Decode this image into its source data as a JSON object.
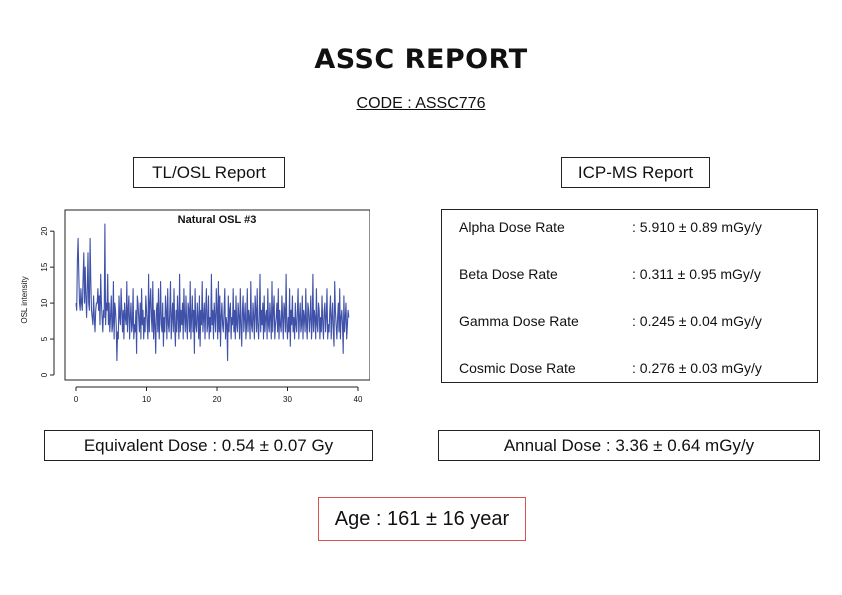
{
  "title": "ASSC REPORT",
  "code": "CODE : ASSC776",
  "tlosl": {
    "header": "TL/OSL Report",
    "equivalent_dose": "Equivalent Dose : 0.54 ± 0.07 Gy"
  },
  "icpms": {
    "header": "ICP-MS Report",
    "rates": [
      {
        "name": "Alpha Dose Rate",
        "value": ": 5.910 ± 0.89 mGy/y"
      },
      {
        "name": "Beta Dose Rate",
        "value": ": 0.311 ± 0.95 mGy/y"
      },
      {
        "name": "Gamma Dose Rate",
        "value": ": 0.245 ± 0.04 mGy/y"
      },
      {
        "name": "Cosmic Dose Rate",
        "value": ": 0.276 ± 0.03 mGy/y"
      }
    ],
    "annual_dose": "Annual Dose : 3.36 ± 0.64 mGy/y"
  },
  "age": "Age : 161 ± 16 year",
  "chart_data": {
    "type": "line",
    "title": "Natural OSL #3",
    "xlabel": "",
    "ylabel": "OSL intensity",
    "xlim": [
      0,
      40
    ],
    "ylim": [
      0,
      21
    ],
    "xticks": [
      "0",
      "10",
      "20",
      "30",
      "40"
    ],
    "yticks": [
      "0",
      "5",
      "10",
      "15",
      "20"
    ],
    "line_color": "#3f51a8",
    "x_start": 0,
    "x_step": 0.1,
    "values": [
      10,
      9,
      16,
      19,
      14,
      10,
      9,
      12,
      10,
      9,
      13,
      17,
      10,
      15,
      11,
      8,
      12,
      17,
      10,
      9,
      19,
      13,
      9,
      8,
      7,
      11,
      8,
      6,
      9,
      10,
      10,
      12,
      9,
      11,
      7,
      14,
      10,
      8,
      6,
      9,
      8,
      21,
      7,
      10,
      9,
      14,
      7,
      10,
      6,
      8,
      11,
      6,
      7,
      13,
      5,
      10,
      9,
      7,
      2,
      6,
      5,
      11,
      8,
      7,
      12,
      9,
      6,
      9,
      5,
      10,
      8,
      7,
      13,
      6,
      9,
      11,
      5,
      8,
      10,
      6,
      7,
      12,
      5,
      7,
      6,
      9,
      3,
      11,
      10,
      8,
      6,
      10,
      5,
      12,
      7,
      9,
      5,
      8,
      6,
      11,
      9,
      7,
      5,
      14,
      6,
      10,
      12,
      8,
      6,
      13,
      5,
      9,
      7,
      3,
      9,
      10,
      6,
      12,
      5,
      8,
      13,
      7,
      6,
      10,
      4,
      8,
      6,
      11,
      9,
      5,
      12,
      7,
      6,
      9,
      13,
      5,
      8,
      10,
      6,
      12,
      7,
      4,
      9,
      6,
      11,
      8,
      5,
      14,
      6,
      9,
      7,
      10,
      5,
      12,
      8,
      6,
      11,
      7,
      5,
      10,
      9,
      6,
      13,
      5,
      8,
      11,
      6,
      9,
      3,
      12,
      7,
      6,
      10,
      8,
      5,
      11,
      4,
      9,
      7,
      13,
      6,
      8,
      10,
      5,
      9,
      12,
      6,
      7,
      11,
      5,
      8,
      6,
      14,
      7,
      9,
      5,
      10,
      8,
      6,
      12,
      9,
      5,
      13,
      6,
      11,
      4,
      8,
      10,
      7,
      6,
      9,
      12,
      5,
      8,
      7,
      2,
      11,
      6,
      9,
      10,
      5,
      8,
      7,
      12,
      6,
      9,
      5,
      11,
      7,
      6,
      10,
      8,
      5,
      12,
      7,
      4,
      9,
      11,
      6,
      8,
      10,
      5,
      7,
      12,
      6,
      9,
      8,
      5,
      13,
      7,
      6,
      10,
      8,
      5,
      11,
      9,
      6,
      12,
      7,
      5,
      8,
      14,
      6,
      9,
      7,
      10,
      5,
      11,
      6,
      8,
      9,
      5,
      12,
      7,
      6,
      10,
      8,
      5,
      13,
      6,
      9,
      11,
      5,
      7,
      8,
      10,
      6,
      12,
      5,
      9,
      7,
      6,
      11,
      8,
      5,
      10,
      9,
      6,
      14,
      7,
      5,
      8,
      6,
      12,
      4,
      9,
      7,
      11,
      6,
      8,
      5,
      10,
      7,
      6,
      9,
      12,
      5,
      8,
      10,
      6,
      7,
      11,
      5,
      9,
      8,
      6,
      12,
      7,
      5,
      10,
      9,
      6,
      8,
      11,
      5,
      7,
      14,
      6,
      9,
      8,
      5,
      12,
      7,
      6,
      10,
      9,
      5,
      8,
      6,
      11,
      7,
      5,
      9,
      10,
      6,
      8,
      12,
      5,
      7,
      6,
      9,
      11,
      5,
      8,
      10,
      6,
      4,
      13,
      9,
      7,
      5,
      8,
      10,
      6,
      12,
      5,
      8,
      9,
      7,
      3,
      11,
      6,
      8,
      10,
      5,
      7,
      9,
      8
    ]
  }
}
